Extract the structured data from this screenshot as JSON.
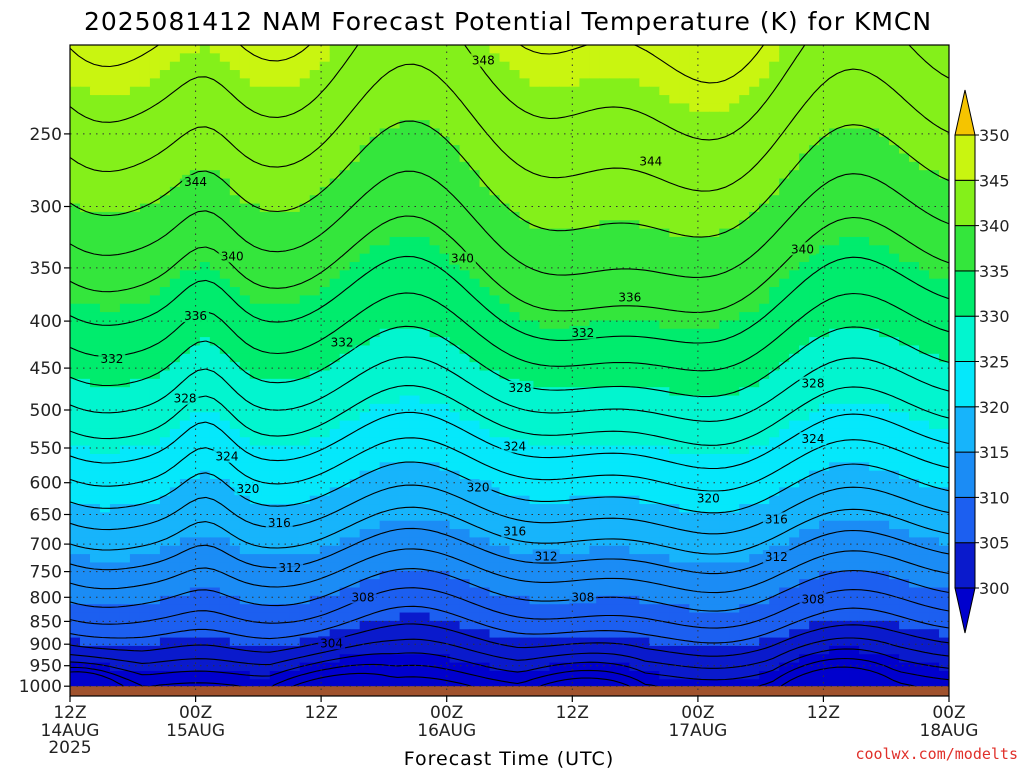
{
  "chart_data": {
    "type": "heatmap",
    "title": "2025081412 NAM Forecast Potential Temperature (K) for KMCN",
    "xlabel": "Forecast Time (UTC)",
    "ylabel": "",
    "credit": "coolwx.com/modelts",
    "y_axis": {
      "scale": "log-pressure",
      "inverted": true,
      "range": [
        1025,
        200
      ],
      "ticks": [
        250,
        300,
        350,
        400,
        450,
        500,
        550,
        600,
        650,
        700,
        750,
        800,
        850,
        900,
        950,
        1000
      ]
    },
    "x_axis": {
      "range_hours": [
        0,
        84
      ],
      "ticks": [
        {
          "hour": 0,
          "label": "12Z",
          "sub": "14AUG",
          "sub2": "2025"
        },
        {
          "hour": 12,
          "label": "00Z",
          "sub": "15AUG",
          "sub2": ""
        },
        {
          "hour": 24,
          "label": "12Z",
          "sub": "",
          "sub2": ""
        },
        {
          "hour": 36,
          "label": "00Z",
          "sub": "16AUG",
          "sub2": ""
        },
        {
          "hour": 48,
          "label": "12Z",
          "sub": "",
          "sub2": ""
        },
        {
          "hour": 60,
          "label": "00Z",
          "sub": "17AUG",
          "sub2": ""
        },
        {
          "hour": 72,
          "label": "12Z",
          "sub": "",
          "sub2": ""
        },
        {
          "hour": 84,
          "label": "00Z",
          "sub": "18AUG",
          "sub2": ""
        }
      ]
    },
    "grid": true,
    "colorbar": {
      "placement": "right",
      "levels": [
        300,
        305,
        310,
        315,
        320,
        325,
        330,
        335,
        340,
        345,
        350
      ],
      "colors": [
        "#0a1acc",
        "#1c5ff0",
        "#1b8cf5",
        "#17b4fb",
        "#05e8fb",
        "#02f5cf",
        "#00ec6d",
        "#34e63c",
        "#84f01a",
        "#c9f510",
        "#ffff00"
      ],
      "under_color": "#0000cd",
      "over_color": "#f5c400",
      "tick_labels": [
        "300",
        "305",
        "310",
        "315",
        "320",
        "325",
        "330",
        "335",
        "340",
        "345",
        "350"
      ]
    },
    "ground_color": "#a0522d",
    "contour_interval": 2,
    "contour_labels": [
      {
        "value": "348",
        "hour": 39.5,
        "pressure": 208
      },
      {
        "value": "344",
        "hour": 12,
        "pressure": 282
      },
      {
        "value": "344",
        "hour": 55.5,
        "pressure": 268
      },
      {
        "value": "340",
        "hour": 15.5,
        "pressure": 340
      },
      {
        "value": "340",
        "hour": 37.5,
        "pressure": 342
      },
      {
        "value": "340",
        "hour": 70,
        "pressure": 334
      },
      {
        "value": "336",
        "hour": 12,
        "pressure": 395
      },
      {
        "value": "336",
        "hour": 53.5,
        "pressure": 377
      },
      {
        "value": "332",
        "hour": 4,
        "pressure": 440
      },
      {
        "value": "332",
        "hour": 26,
        "pressure": 422
      },
      {
        "value": "332",
        "hour": 49,
        "pressure": 412
      },
      {
        "value": "328",
        "hour": 11,
        "pressure": 486
      },
      {
        "value": "328",
        "hour": 43,
        "pressure": 473
      },
      {
        "value": "328",
        "hour": 71,
        "pressure": 468
      },
      {
        "value": "324",
        "hour": 15,
        "pressure": 562
      },
      {
        "value": "324",
        "hour": 42.5,
        "pressure": 548
      },
      {
        "value": "324",
        "hour": 71,
        "pressure": 538
      },
      {
        "value": "320",
        "hour": 17,
        "pressure": 610
      },
      {
        "value": "320",
        "hour": 39,
        "pressure": 607
      },
      {
        "value": "320",
        "hour": 61,
        "pressure": 624
      },
      {
        "value": "316",
        "hour": 20,
        "pressure": 664
      },
      {
        "value": "316",
        "hour": 42.5,
        "pressure": 678
      },
      {
        "value": "316",
        "hour": 67.5,
        "pressure": 658
      },
      {
        "value": "312",
        "hour": 21,
        "pressure": 743
      },
      {
        "value": "312",
        "hour": 45.5,
        "pressure": 722
      },
      {
        "value": "312",
        "hour": 67.5,
        "pressure": 723
      },
      {
        "value": "308",
        "hour": 28,
        "pressure": 800
      },
      {
        "value": "308",
        "hour": 49,
        "pressure": 800
      },
      {
        "value": "308",
        "hour": 71,
        "pressure": 805
      },
      {
        "value": "304",
        "hour": 25,
        "pressure": 898
      }
    ]
  }
}
